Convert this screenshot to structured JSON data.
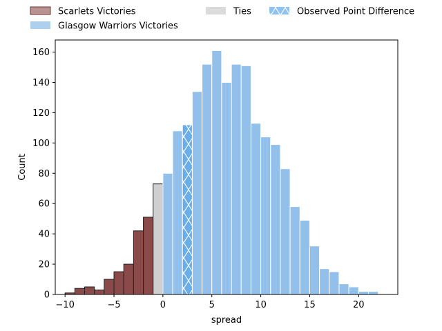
{
  "chart_data": {
    "type": "bar",
    "xlabel": "spread",
    "ylabel": "Count",
    "xlim": [
      -11,
      24
    ],
    "ylim": [
      0,
      168
    ],
    "xticks": [
      -10,
      -5,
      0,
      5,
      10,
      15,
      20
    ],
    "yticks": [
      0,
      20,
      40,
      60,
      80,
      100,
      120,
      140,
      160
    ],
    "bin_width": 1,
    "legend_position": "above plot, top",
    "legend": [
      {
        "label": "Scarlets Victories",
        "series": "scarlets"
      },
      {
        "label": "Ties",
        "series": "ties"
      },
      {
        "label": "Observed Point Difference",
        "series": "observed"
      },
      {
        "label": "Glasgow Warriors Victories",
        "series": "glasgow"
      }
    ],
    "series": [
      {
        "key": "scarlets",
        "name": "Scarlets Victories",
        "color": "#8b4a4a",
        "edge": "#222222",
        "bins": [
          {
            "x": -9.5,
            "count": 1
          },
          {
            "x": -8.5,
            "count": 4
          },
          {
            "x": -7.5,
            "count": 5
          },
          {
            "x": -6.5,
            "count": 3
          },
          {
            "x": -5.5,
            "count": 10
          },
          {
            "x": -4.5,
            "count": 15
          },
          {
            "x": -3.5,
            "count": 20
          },
          {
            "x": -2.5,
            "count": 42
          },
          {
            "x": -1.5,
            "count": 51
          }
        ]
      },
      {
        "key": "ties",
        "name": "Ties",
        "color": "#cfcfcf",
        "edge": "#222222",
        "bins": [
          {
            "x": -0.5,
            "count": 73
          }
        ]
      },
      {
        "key": "glasgow",
        "name": "Glasgow Warriors Victories",
        "color": "#92c0ea",
        "edge": "#ffffff",
        "bins": [
          {
            "x": 0.5,
            "count": 80
          },
          {
            "x": 1.5,
            "count": 108
          },
          {
            "x": 2.5,
            "count": 112
          },
          {
            "x": 3.5,
            "count": 134
          },
          {
            "x": 4.5,
            "count": 152
          },
          {
            "x": 5.5,
            "count": 161
          },
          {
            "x": 6.5,
            "count": 140
          },
          {
            "x": 7.5,
            "count": 152
          },
          {
            "x": 8.5,
            "count": 151
          },
          {
            "x": 9.5,
            "count": 113
          },
          {
            "x": 10.5,
            "count": 104
          },
          {
            "x": 11.5,
            "count": 99
          },
          {
            "x": 12.5,
            "count": 83
          },
          {
            "x": 13.5,
            "count": 58
          },
          {
            "x": 14.5,
            "count": 49
          },
          {
            "x": 15.5,
            "count": 32
          },
          {
            "x": 16.5,
            "count": 17
          },
          {
            "x": 17.5,
            "count": 15
          },
          {
            "x": 18.5,
            "count": 7
          },
          {
            "x": 19.5,
            "count": 5
          },
          {
            "x": 20.5,
            "count": 2
          },
          {
            "x": 21.5,
            "count": 2
          }
        ]
      },
      {
        "key": "observed",
        "name": "Observed Point Difference",
        "color": "#6aaee8",
        "hatch": "x",
        "bins": [
          {
            "x": 2.5,
            "count": 112
          }
        ]
      }
    ]
  }
}
